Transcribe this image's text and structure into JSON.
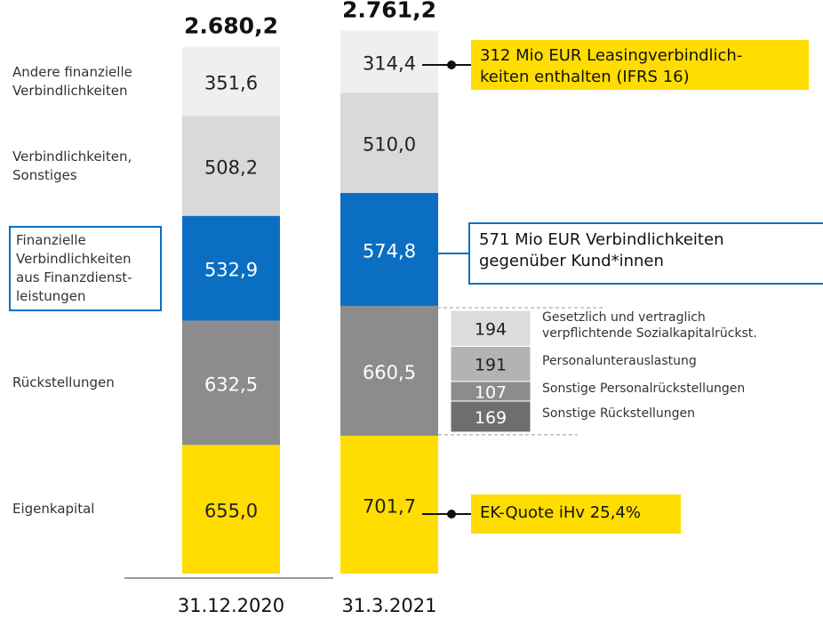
{
  "chart_data": {
    "type": "stacked_bar",
    "categories": [
      "31.12.2020",
      "31.3.2021"
    ],
    "totals": [
      2680.2,
      2761.2
    ],
    "total_labels": [
      "2.680,2",
      "2.761,2"
    ],
    "series": [
      {
        "name": "Eigenkapital",
        "color": "#ffdd00",
        "values": [
          655.0,
          701.7
        ],
        "value_labels": [
          "655,0",
          "701,7"
        ]
      },
      {
        "name": "Rückstellungen",
        "color": "#8c8c8c",
        "values": [
          632.5,
          660.5
        ],
        "value_labels": [
          "632,5",
          "660,5"
        ]
      },
      {
        "name": "Finanzielle\nVerbindlichkeiten\naus Finanzdienst-\nleistungen",
        "color": "#0a6fc2",
        "values": [
          532.9,
          574.8
        ],
        "value_labels": [
          "532,9",
          "574,8"
        ]
      },
      {
        "name": "Verbindlichkeiten,\nSonstiges",
        "color": "#d9d9d9",
        "values": [
          508.2,
          510.0
        ],
        "value_labels": [
          "508,2",
          "510,0"
        ]
      },
      {
        "name": "Andere finanzielle\nVerbindlichkeiten",
        "color": "#efefef",
        "values": [
          351.6,
          314.4
        ],
        "value_labels": [
          "351,6",
          "314,4"
        ]
      }
    ],
    "breakdown": {
      "categories": [
        "Sonstige Rückstellungen",
        "Sonstige Personalrückstellungen",
        "Personalunterauslastung",
        "Gesetzlich und vertraglich\nverpflichtende Sozialkapitalrückst."
      ],
      "values": [
        169,
        107,
        191,
        194
      ],
      "colors": [
        "#6e6e6e",
        "#8c8c8c",
        "#b3b3b3",
        "#dcdcdc"
      ]
    },
    "annotations": [
      {
        "text": "312 Mio EUR Leasingverbindlich-\nkeiten enthalten (IFRS 16)"
      },
      {
        "text": "571 Mio EUR Verbindlichkeiten\ngegenüber Kund*innen"
      },
      {
        "text": "EK-Quote iHv 25,4%"
      }
    ]
  }
}
